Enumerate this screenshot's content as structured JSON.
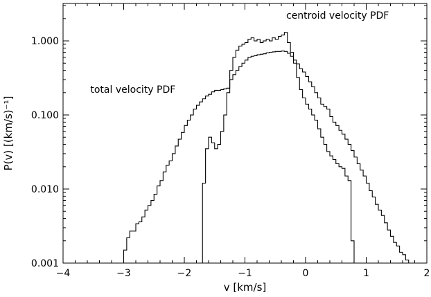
{
  "chart_data": {
    "type": "line",
    "title": "",
    "xlabel": "v [km/s]",
    "ylabel": "P(v) [(km/s)⁻¹]",
    "xlim": [
      -4,
      2
    ],
    "ylim": [
      0.001,
      3.2
    ],
    "yscale": "log",
    "grid": false,
    "legend": "none",
    "xticks": [
      {
        "value": -4,
        "label": "−4"
      },
      {
        "value": -3,
        "label": "−3"
      },
      {
        "value": -2,
        "label": "−2"
      },
      {
        "value": -1,
        "label": "−1"
      },
      {
        "value": 0,
        "label": "0"
      },
      {
        "value": 1,
        "label": "1"
      },
      {
        "value": 2,
        "label": "2"
      }
    ],
    "yticks": [
      {
        "value": 0.001,
        "label": "0.001"
      },
      {
        "value": 0.01,
        "label": "0.010"
      },
      {
        "value": 0.1,
        "label": "0.100"
      },
      {
        "value": 1,
        "label": "1.000"
      }
    ],
    "annotations": [
      {
        "text": "total velocity PDF",
        "x": -3.55,
        "y": 0.2
      },
      {
        "text": "centroid velocity PDF",
        "x": -0.32,
        "y": 2.0
      }
    ],
    "series": [
      {
        "id": "total",
        "step": true,
        "x": [
          -3.0,
          -2.95,
          -2.9,
          -2.85,
          -2.8,
          -2.75,
          -2.7,
          -2.65,
          -2.6,
          -2.55,
          -2.5,
          -2.45,
          -2.4,
          -2.35,
          -2.3,
          -2.25,
          -2.2,
          -2.15,
          -2.1,
          -2.05,
          -2.0,
          -1.95,
          -1.9,
          -1.85,
          -1.8,
          -1.75,
          -1.7,
          -1.65,
          -1.6,
          -1.55,
          -1.5,
          -1.45,
          -1.4,
          -1.35,
          -1.3,
          -1.25,
          -1.2,
          -1.15,
          -1.1,
          -1.05,
          -1.0,
          -0.95,
          -0.9,
          -0.85,
          -0.8,
          -0.75,
          -0.7,
          -0.65,
          -0.6,
          -0.55,
          -0.5,
          -0.45,
          -0.4,
          -0.35,
          -0.3,
          -0.25,
          -0.2,
          -0.15,
          -0.1,
          -0.05,
          0.0,
          0.05,
          0.1,
          0.15,
          0.2,
          0.25,
          0.3,
          0.35,
          0.4,
          0.45,
          0.5,
          0.55,
          0.6,
          0.65,
          0.7,
          0.75,
          0.8,
          0.85,
          0.9,
          0.95,
          1.0,
          1.05,
          1.1,
          1.15,
          1.2,
          1.25,
          1.3,
          1.35,
          1.4,
          1.45,
          1.5,
          1.55,
          1.6,
          1.65,
          1.7
        ],
        "y": [
          0.0015,
          0.0022,
          0.0027,
          0.0027,
          0.0034,
          0.0036,
          0.0042,
          0.0052,
          0.006,
          0.007,
          0.0085,
          0.011,
          0.013,
          0.017,
          0.021,
          0.024,
          0.03,
          0.038,
          0.047,
          0.058,
          0.072,
          0.085,
          0.1,
          0.12,
          0.135,
          0.15,
          0.165,
          0.18,
          0.19,
          0.205,
          0.215,
          0.215,
          0.22,
          0.225,
          0.23,
          0.3,
          0.35,
          0.4,
          0.45,
          0.5,
          0.55,
          0.6,
          0.62,
          0.63,
          0.65,
          0.66,
          0.67,
          0.69,
          0.7,
          0.71,
          0.72,
          0.72,
          0.73,
          0.72,
          0.68,
          0.62,
          0.55,
          0.49,
          0.42,
          0.38,
          0.33,
          0.28,
          0.24,
          0.2,
          0.17,
          0.14,
          0.13,
          0.12,
          0.095,
          0.08,
          0.072,
          0.062,
          0.055,
          0.047,
          0.04,
          0.033,
          0.027,
          0.022,
          0.018,
          0.015,
          0.012,
          0.0095,
          0.0078,
          0.0062,
          0.0052,
          0.0044,
          0.0035,
          0.0028,
          0.0023,
          0.0019,
          0.0017,
          0.0014,
          0.0013,
          0.0011,
          0.001
        ]
      },
      {
        "id": "centroid",
        "step": true,
        "x": [
          -1.75,
          -1.7,
          -1.65,
          -1.6,
          -1.55,
          -1.5,
          -1.45,
          -1.4,
          -1.35,
          -1.3,
          -1.25,
          -1.2,
          -1.15,
          -1.1,
          -1.05,
          -1.0,
          -0.95,
          -0.9,
          -0.85,
          -0.8,
          -0.75,
          -0.7,
          -0.65,
          -0.6,
          -0.55,
          -0.5,
          -0.45,
          -0.4,
          -0.35,
          -0.3,
          -0.25,
          -0.2,
          -0.15,
          -0.1,
          -0.05,
          0.0,
          0.05,
          0.1,
          0.15,
          0.2,
          0.25,
          0.3,
          0.35,
          0.4,
          0.45,
          0.5,
          0.55,
          0.6,
          0.65,
          0.7,
          0.75,
          0.8
        ],
        "y": [
          0.001,
          0.012,
          0.035,
          0.05,
          0.042,
          0.035,
          0.04,
          0.06,
          0.1,
          0.2,
          0.4,
          0.6,
          0.75,
          0.85,
          0.9,
          0.95,
          1.05,
          1.1,
          1.0,
          1.05,
          0.95,
          1.0,
          1.05,
          1.0,
          1.1,
          1.05,
          1.15,
          1.2,
          1.3,
          0.95,
          0.7,
          0.5,
          0.32,
          0.22,
          0.17,
          0.14,
          0.12,
          0.1,
          0.085,
          0.065,
          0.05,
          0.04,
          0.032,
          0.028,
          0.025,
          0.022,
          0.02,
          0.019,
          0.015,
          0.013,
          0.002,
          0.001
        ]
      }
    ]
  }
}
